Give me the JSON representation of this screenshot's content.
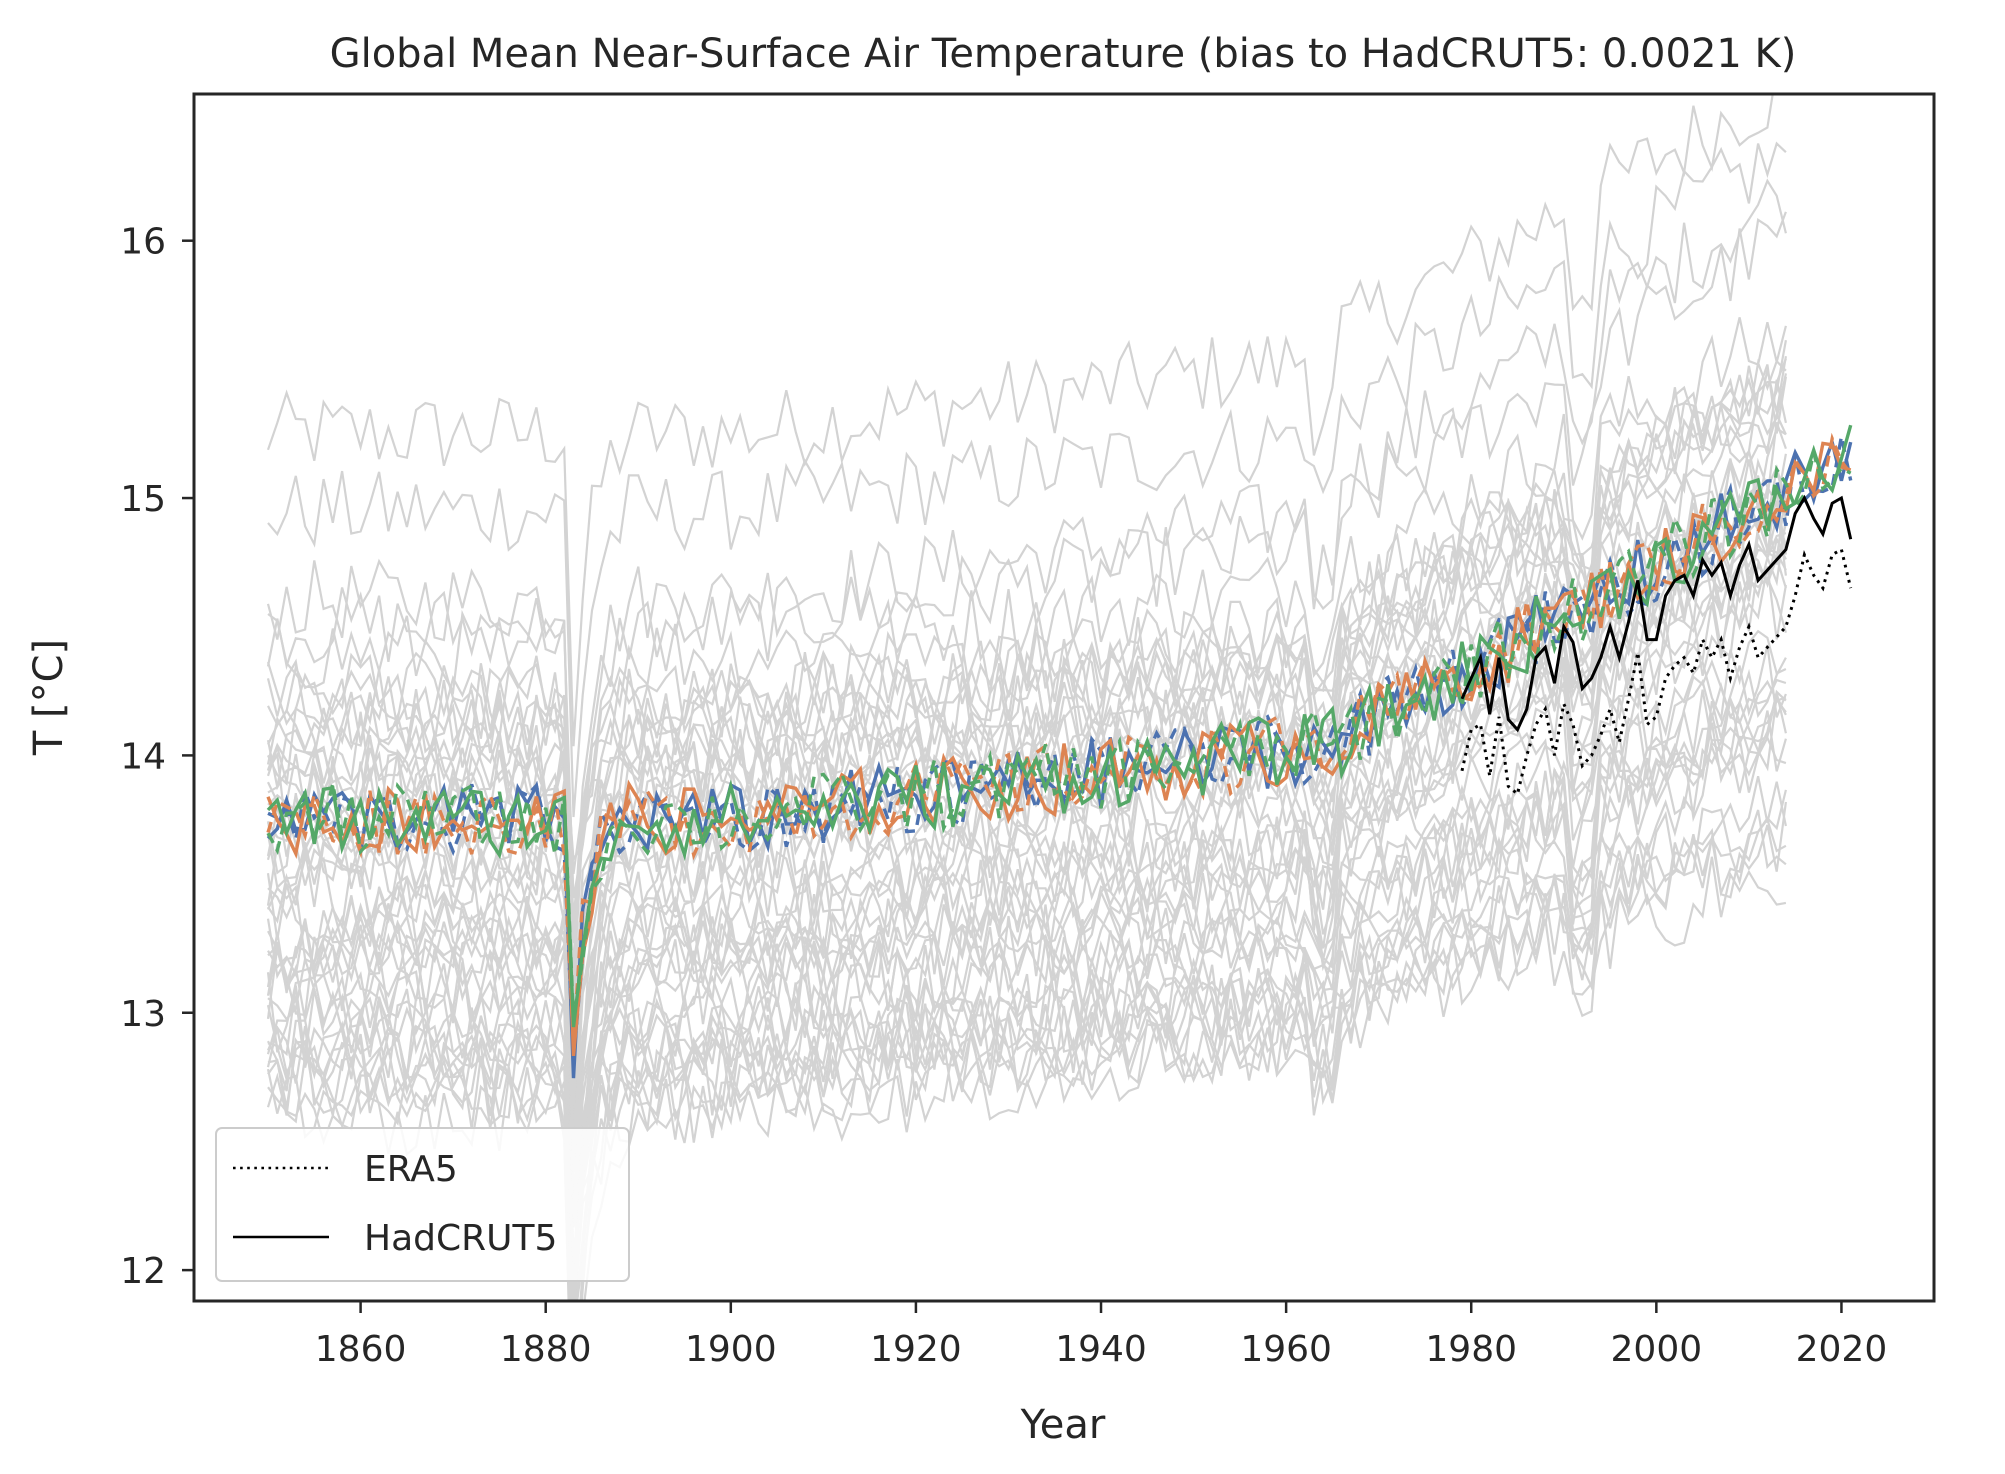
{
  "chart_data": {
    "type": "line",
    "title": "Global Mean Near-Surface Air Temperature (bias to HadCRUT5: 0.0021 K)",
    "xlabel": "Year",
    "ylabel": "T [°C]",
    "xlim": [
      1842,
      2030
    ],
    "ylim": [
      11.88,
      16.57
    ],
    "xticks": [
      1860,
      1880,
      1900,
      1920,
      1940,
      1960,
      1980,
      2000,
      2020
    ],
    "yticks": [
      12,
      13,
      14,
      15,
      16
    ],
    "grid": false,
    "legend_position": "lower-left",
    "colors": {
      "ensemble": "#d3d3d3",
      "blue": "#4c72b0",
      "orange": "#dd8452",
      "green": "#55a868",
      "black": "#000000"
    },
    "ensemble_model_count": 48,
    "ensemble_baselines": [
      15.25,
      14.95,
      14.6,
      14.5,
      14.4,
      14.25,
      14.22,
      14.2,
      14.15,
      14.1,
      14.05,
      14.0,
      13.95,
      13.9,
      13.85,
      13.8,
      13.75,
      13.7,
      13.65,
      13.6,
      13.55,
      13.5,
      13.45,
      13.4,
      13.35,
      13.3,
      13.25,
      13.2,
      13.15,
      13.1,
      13.05,
      13.0,
      12.95,
      12.9,
      12.85,
      12.8,
      12.75,
      12.7,
      12.65,
      12.6,
      13.9,
      14.0,
      13.7,
      13.3,
      13.2,
      12.9,
      12.8,
      12.75
    ],
    "reanalysis_series": [
      {
        "name": "ERA5",
        "x": [
          1979,
          1980,
          1981,
          1982,
          1983,
          1984,
          1985,
          1986,
          1987,
          1988,
          1989,
          1990,
          1991,
          1992,
          1993,
          1994,
          1995,
          1996,
          1997,
          1998,
          1999,
          2000,
          2001,
          2002,
          2003,
          2004,
          2005,
          2006,
          2007,
          2008,
          2009,
          2010,
          2011,
          2012,
          2013,
          2014,
          2015,
          2016,
          2017,
          2018,
          2019,
          2020,
          2021
        ],
        "values": [
          13.94,
          14.1,
          14.12,
          13.92,
          14.15,
          13.88,
          13.85,
          14.0,
          14.12,
          14.18,
          14.0,
          14.2,
          14.12,
          13.96,
          14.0,
          14.08,
          14.18,
          14.05,
          14.22,
          14.4,
          14.12,
          14.15,
          14.3,
          14.35,
          14.38,
          14.32,
          14.45,
          14.38,
          14.45,
          14.3,
          14.42,
          14.5,
          14.38,
          14.42,
          14.46,
          14.5,
          14.62,
          14.78,
          14.7,
          14.65,
          14.78,
          14.8,
          14.65
        ],
        "style": "dotted",
        "color": "#000000"
      },
      {
        "name": "HadCRUT5",
        "x": [
          1979,
          1980,
          1981,
          1982,
          1983,
          1984,
          1985,
          1986,
          1987,
          1988,
          1989,
          1990,
          1991,
          1992,
          1993,
          1994,
          1995,
          1996,
          1997,
          1998,
          1999,
          2000,
          2001,
          2002,
          2003,
          2004,
          2005,
          2006,
          2007,
          2008,
          2009,
          2010,
          2011,
          2012,
          2013,
          2014,
          2015,
          2016,
          2017,
          2018,
          2019,
          2020,
          2021
        ],
        "values": [
          14.22,
          14.3,
          14.38,
          14.16,
          14.38,
          14.14,
          14.1,
          14.18,
          14.38,
          14.42,
          14.28,
          14.5,
          14.44,
          14.26,
          14.3,
          14.38,
          14.5,
          14.38,
          14.52,
          14.68,
          14.45,
          14.45,
          14.62,
          14.68,
          14.7,
          14.62,
          14.76,
          14.7,
          14.75,
          14.62,
          14.74,
          14.82,
          14.68,
          14.72,
          14.76,
          14.8,
          14.94,
          15.0,
          14.92,
          14.86,
          14.98,
          15.0,
          14.84
        ],
        "style": "solid",
        "color": "#000000"
      }
    ],
    "highlight_series_colors": [
      "#4c72b0",
      "#dd8452",
      "#55a868"
    ],
    "model_x_range": [
      1850,
      2014
    ],
    "legend": [
      "ERA5",
      "HadCRUT5"
    ]
  }
}
